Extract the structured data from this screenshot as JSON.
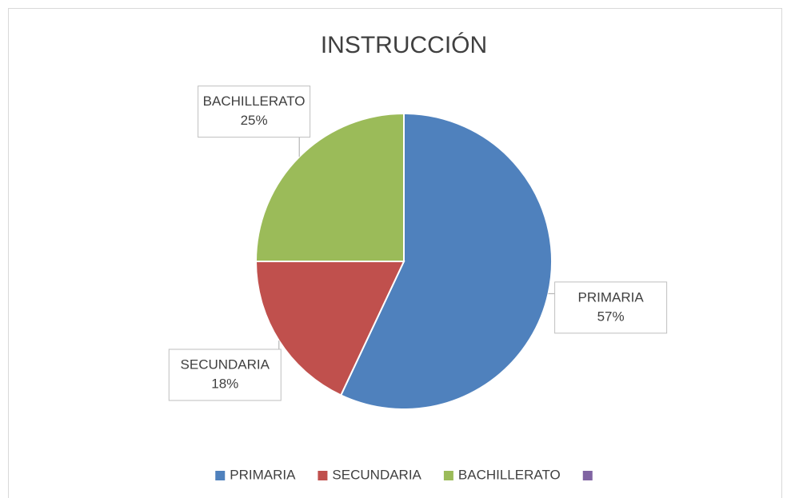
{
  "chart_data": {
    "type": "pie",
    "title": "INSTRUCCIÓN",
    "categories": [
      "PRIMARIA",
      "SECUNDARIA",
      "BACHILLERATO",
      null
    ],
    "values": [
      57,
      18,
      25,
      0
    ],
    "value_labels": [
      "57%",
      "18%",
      "25%",
      null
    ],
    "colors": [
      "#4f81bd",
      "#c0504d",
      "#9bbb59",
      "#8064a2"
    ],
    "legend": "bottom"
  }
}
